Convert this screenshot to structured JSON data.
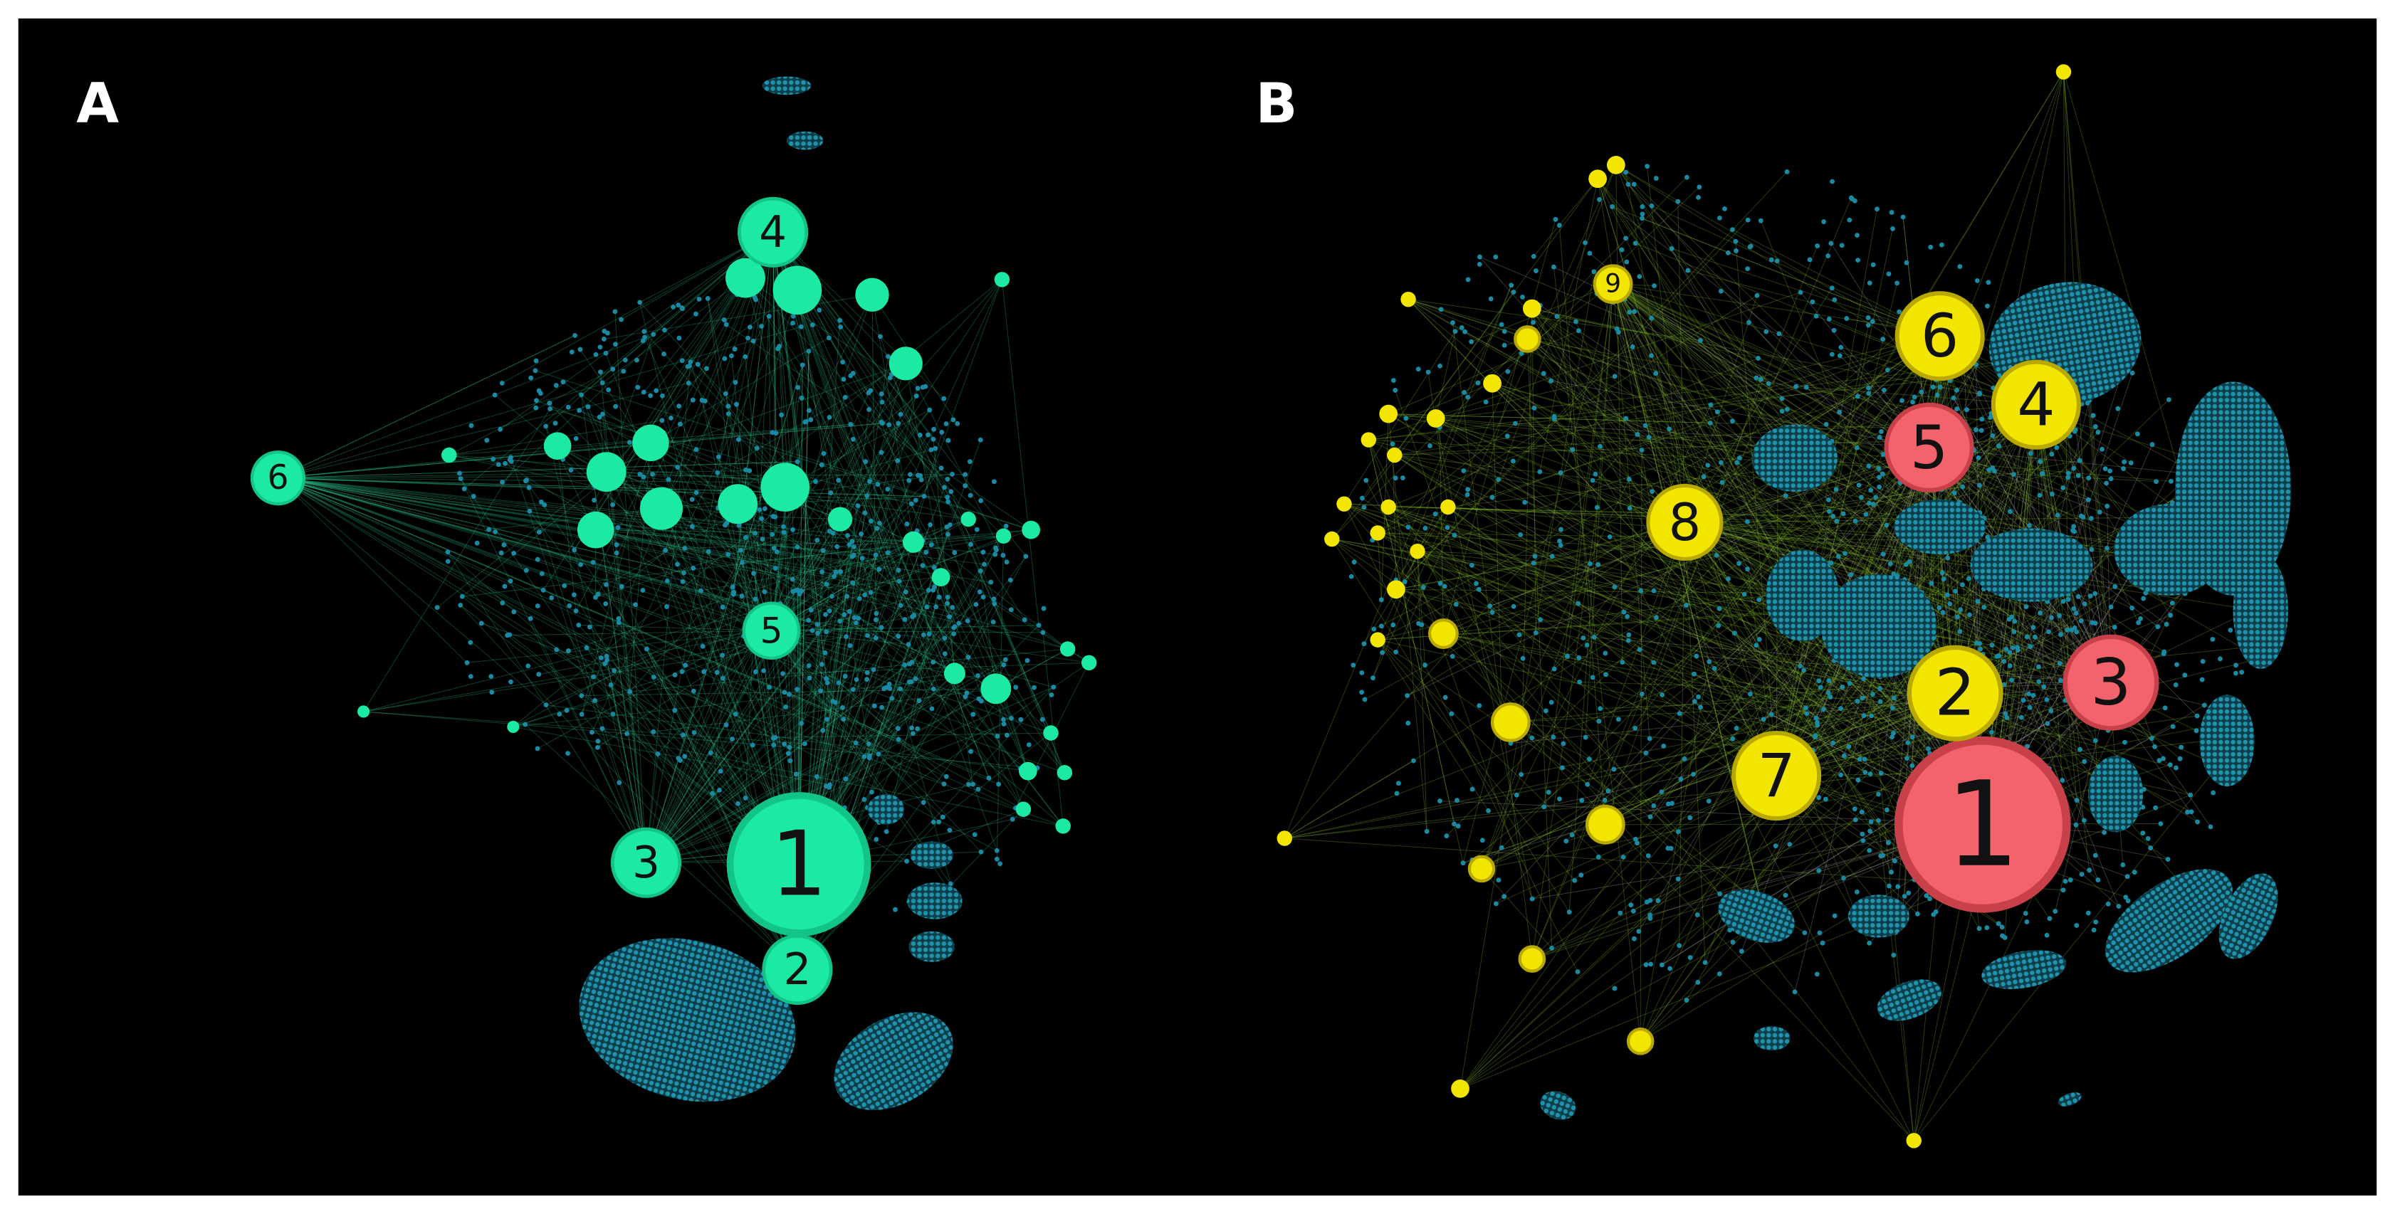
{
  "panels": [
    {
      "label": "A",
      "nodes": [
        "1",
        "2",
        "3",
        "4",
        "5",
        "6"
      ]
    },
    {
      "label": "B",
      "nodes": [
        "1",
        "2",
        "3",
        "4",
        "5",
        "6",
        "7",
        "8",
        "9"
      ]
    }
  ]
}
